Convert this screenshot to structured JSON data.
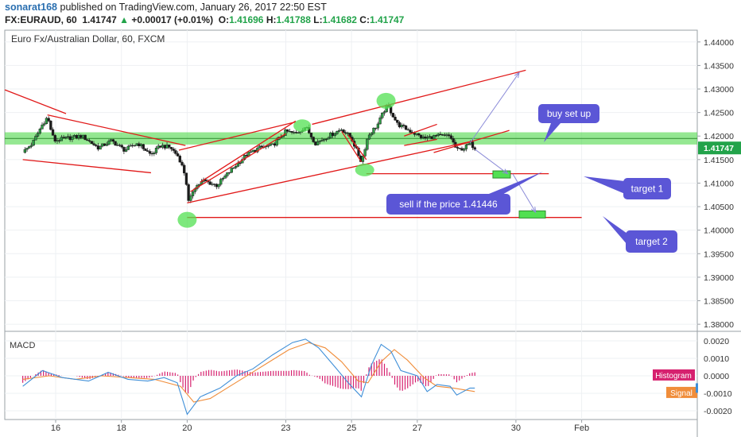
{
  "header": {
    "author": "sonarat168",
    "published": "published on TradingView.com, January 26, 2017 22:50 EST",
    "symbol": "FX:EURAUD, 60",
    "last": "1.41747",
    "change_arrow": "▲",
    "change": "+0.00017 (+0.01%)",
    "o_label": "O:",
    "o_value": "1.41696",
    "h_label": "H:",
    "h_value": "1.41788",
    "l_label": "L:",
    "l_value": "1.41682",
    "c_label": "C:",
    "c_value": "1.41747"
  },
  "chart_data": [
    {
      "type": "candlestick",
      "title": "Euro Fx/Australian Dollar, 60, FXCM",
      "ylim": [
        1.3785,
        1.4425
      ],
      "y_ticks": [
        "1.44000",
        "1.43500",
        "1.43000",
        "1.42500",
        "1.42000",
        "1.41500",
        "1.41000",
        "1.40500",
        "1.40000",
        "1.39500",
        "1.39000",
        "1.38500",
        "1.38000"
      ],
      "x_ticks": [
        "16",
        "18",
        "20",
        "23",
        "25",
        "27",
        "30",
        "Feb"
      ],
      "price_path": [
        [
          15.0,
          1.4165
        ],
        [
          15.3,
          1.4185
        ],
        [
          15.6,
          1.4225
        ],
        [
          15.75,
          1.424
        ],
        [
          15.95,
          1.419
        ],
        [
          16.3,
          1.4195
        ],
        [
          16.8,
          1.42
        ],
        [
          17.3,
          1.4175
        ],
        [
          17.7,
          1.419
        ],
        [
          18.1,
          1.417
        ],
        [
          18.5,
          1.4185
        ],
        [
          18.9,
          1.416
        ],
        [
          19.2,
          1.418
        ],
        [
          19.5,
          1.4175
        ],
        [
          19.75,
          1.4155
        ],
        [
          19.95,
          1.4115
        ],
        [
          20.05,
          1.4055
        ],
        [
          20.2,
          1.409
        ],
        [
          20.5,
          1.4105
        ],
        [
          20.9,
          1.4095
        ],
        [
          21.3,
          1.4125
        ],
        [
          21.8,
          1.416
        ],
        [
          22.2,
          1.4175
        ],
        [
          22.6,
          1.418
        ],
        [
          23.0,
          1.421
        ],
        [
          23.3,
          1.4205
        ],
        [
          23.6,
          1.422
        ],
        [
          23.9,
          1.4185
        ],
        [
          24.3,
          1.42
        ],
        [
          24.7,
          1.4215
        ],
        [
          25.0,
          1.4195
        ],
        [
          25.3,
          1.4145
        ],
        [
          25.5,
          1.42
        ],
        [
          25.8,
          1.4225
        ],
        [
          26.0,
          1.4255
        ],
        [
          26.1,
          1.4265
        ],
        [
          26.4,
          1.4225
        ],
        [
          26.8,
          1.421
        ],
        [
          27.2,
          1.4195
        ],
        [
          27.6,
          1.42
        ],
        [
          28.0,
          1.42
        ],
        [
          28.2,
          1.417
        ],
        [
          28.45,
          1.4175
        ],
        [
          28.6,
          1.4185
        ],
        [
          28.75,
          1.4175
        ]
      ],
      "annotations": {
        "resistance_zone": [
          1.4182,
          1.4208
        ],
        "labels": [
          "buy set up",
          "sell if the price 1.41446",
          "target 1",
          "target 2"
        ]
      }
    },
    {
      "type": "line",
      "title": "MACD",
      "ylim": [
        -0.0025,
        0.0025
      ],
      "y_ticks": [
        "0.0020",
        "0.0010",
        "0.0000",
        "-0.0010",
        "-0.0020"
      ],
      "legend": [
        "Histogram",
        "Signal"
      ],
      "colors": {
        "macd": "#3f8fd8",
        "signal": "#f08d3a",
        "histogram": "#d6206e"
      },
      "macd_path": [
        [
          15.0,
          -0.0006
        ],
        [
          15.6,
          0.0003
        ],
        [
          16.2,
          -0.0001
        ],
        [
          17.0,
          -0.0003
        ],
        [
          17.6,
          0.0002
        ],
        [
          18.2,
          -0.0002
        ],
        [
          18.8,
          -0.0003
        ],
        [
          19.3,
          -0.0001
        ],
        [
          19.7,
          -0.0004
        ],
        [
          20.0,
          -0.0022
        ],
        [
          20.4,
          -0.0012
        ],
        [
          21.0,
          -0.0007
        ],
        [
          21.5,
          0.0
        ],
        [
          22.0,
          0.0004
        ],
        [
          22.6,
          0.0012
        ],
        [
          23.2,
          0.0019
        ],
        [
          23.6,
          0.0021
        ],
        [
          24.0,
          0.0016
        ],
        [
          24.5,
          0.0005
        ],
        [
          24.9,
          -0.0004
        ],
        [
          25.3,
          -0.0012
        ],
        [
          25.6,
          0.0006
        ],
        [
          25.9,
          0.0018
        ],
        [
          26.2,
          0.0014
        ],
        [
          26.5,
          0.0003
        ],
        [
          27.0,
          0.0
        ],
        [
          27.3,
          -0.0009
        ],
        [
          27.6,
          -0.0005
        ],
        [
          28.0,
          -0.0006
        ],
        [
          28.2,
          -0.0011
        ],
        [
          28.6,
          -0.0007
        ],
        [
          28.75,
          -0.0007
        ]
      ],
      "signal_path": [
        [
          15.0,
          -0.0002
        ],
        [
          15.8,
          0.0
        ],
        [
          16.6,
          -0.0002
        ],
        [
          17.4,
          0.0
        ],
        [
          18.2,
          -0.0001
        ],
        [
          19.0,
          -0.0002
        ],
        [
          19.8,
          -0.0006
        ],
        [
          20.2,
          -0.0015
        ],
        [
          20.7,
          -0.0013
        ],
        [
          21.3,
          -0.0006
        ],
        [
          21.9,
          0.0001
        ],
        [
          22.5,
          0.0008
        ],
        [
          23.1,
          0.0015
        ],
        [
          23.7,
          0.0019
        ],
        [
          24.2,
          0.0016
        ],
        [
          24.7,
          0.0008
        ],
        [
          25.2,
          -0.0003
        ],
        [
          25.5,
          -0.0004
        ],
        [
          25.9,
          0.0008
        ],
        [
          26.3,
          0.0015
        ],
        [
          26.7,
          0.0009
        ],
        [
          27.2,
          -0.0001
        ],
        [
          27.6,
          -0.0006
        ],
        [
          28.1,
          -0.0007
        ],
        [
          28.75,
          -0.0009
        ]
      ]
    }
  ]
}
